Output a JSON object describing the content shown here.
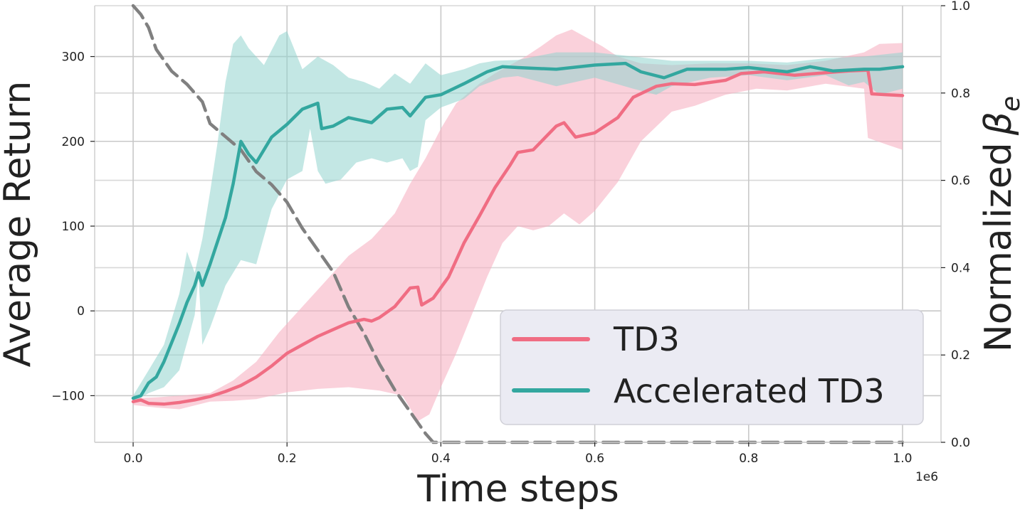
{
  "colors": {
    "td3": "#f06d83",
    "td3_band": "#f7b3c3",
    "acc": "#33a79f",
    "acc_band": "#91d3ce",
    "beta": "#808080",
    "grid": "#c8c8c8",
    "legend_bg": "#ebebf3"
  },
  "chart_data": {
    "type": "line",
    "xlabel": "Time steps",
    "ylabel": "Average Return",
    "y2label": "Normalized",
    "y2label_symbol": "β",
    "y2label_sub": "e",
    "x_offset_label": "1e6",
    "xlim": [
      -0.05,
      1.05
    ],
    "ylim": [
      -155,
      360
    ],
    "y2lim": [
      0,
      1
    ],
    "grid": true,
    "legend_position": "lower-right",
    "x_ticks": [
      0.0,
      0.2,
      0.4,
      0.6,
      0.8,
      1.0
    ],
    "x_tick_labels": [
      "0.0",
      "0.2",
      "0.4",
      "0.6",
      "0.8",
      "1.0"
    ],
    "y_ticks": [
      -100,
      0,
      100,
      200,
      300
    ],
    "y_tick_labels": [
      "−100",
      "0",
      "100",
      "200",
      "300"
    ],
    "y2_ticks": [
      0,
      0.2,
      0.4,
      0.6,
      0.8,
      1.0
    ],
    "y2_tick_labels": [
      "0.0",
      "0.2",
      "0.4",
      "0.6",
      "0.8",
      "1.0"
    ],
    "series": [
      {
        "name": "TD3",
        "axis": "left",
        "points": [
          [
            0.0,
            -107
          ],
          [
            0.01,
            -105
          ],
          [
            0.02,
            -109
          ],
          [
            0.04,
            -110
          ],
          [
            0.06,
            -108
          ],
          [
            0.08,
            -105
          ],
          [
            0.1,
            -101
          ],
          [
            0.12,
            -95
          ],
          [
            0.14,
            -88
          ],
          [
            0.16,
            -78
          ],
          [
            0.18,
            -65
          ],
          [
            0.2,
            -50
          ],
          [
            0.22,
            -40
          ],
          [
            0.24,
            -30
          ],
          [
            0.26,
            -22
          ],
          [
            0.28,
            -14
          ],
          [
            0.3,
            -10
          ],
          [
            0.31,
            -12
          ],
          [
            0.32,
            -8
          ],
          [
            0.34,
            5
          ],
          [
            0.36,
            27
          ],
          [
            0.37,
            28
          ],
          [
            0.375,
            7
          ],
          [
            0.39,
            15
          ],
          [
            0.41,
            40
          ],
          [
            0.43,
            80
          ],
          [
            0.45,
            112
          ],
          [
            0.47,
            145
          ],
          [
            0.49,
            172
          ],
          [
            0.5,
            187
          ],
          [
            0.52,
            190
          ],
          [
            0.55,
            218
          ],
          [
            0.56,
            222
          ],
          [
            0.575,
            205
          ],
          [
            0.6,
            210
          ],
          [
            0.63,
            228
          ],
          [
            0.65,
            252
          ],
          [
            0.68,
            265
          ],
          [
            0.7,
            268
          ],
          [
            0.73,
            267
          ],
          [
            0.77,
            272
          ],
          [
            0.79,
            280
          ],
          [
            0.82,
            282
          ],
          [
            0.86,
            278
          ],
          [
            0.9,
            281
          ],
          [
            0.93,
            283
          ],
          [
            0.955,
            284
          ],
          [
            0.96,
            256
          ],
          [
            0.98,
            255
          ],
          [
            1.0,
            254
          ]
        ],
        "band_upper": [
          [
            0.0,
            -103
          ],
          [
            0.03,
            -102
          ],
          [
            0.06,
            -100
          ],
          [
            0.1,
            -97
          ],
          [
            0.13,
            -82
          ],
          [
            0.16,
            -60
          ],
          [
            0.19,
            -25
          ],
          [
            0.22,
            5
          ],
          [
            0.25,
            35
          ],
          [
            0.28,
            65
          ],
          [
            0.31,
            85
          ],
          [
            0.34,
            115
          ],
          [
            0.36,
            150
          ],
          [
            0.38,
            180
          ],
          [
            0.4,
            215
          ],
          [
            0.42,
            245
          ],
          [
            0.45,
            268
          ],
          [
            0.47,
            280
          ],
          [
            0.49,
            290
          ],
          [
            0.51,
            300
          ],
          [
            0.53,
            312
          ],
          [
            0.55,
            325
          ],
          [
            0.57,
            332
          ],
          [
            0.59,
            322
          ],
          [
            0.61,
            312
          ],
          [
            0.63,
            300
          ],
          [
            0.66,
            292
          ],
          [
            0.7,
            290
          ],
          [
            0.75,
            292
          ],
          [
            0.8,
            292
          ],
          [
            0.85,
            290
          ],
          [
            0.9,
            295
          ],
          [
            0.95,
            305
          ],
          [
            0.97,
            315
          ],
          [
            1.0,
            316
          ]
        ],
        "band_lower": [
          [
            0.0,
            -111
          ],
          [
            0.03,
            -114
          ],
          [
            0.06,
            -116
          ],
          [
            0.1,
            -107
          ],
          [
            0.13,
            -106
          ],
          [
            0.16,
            -104
          ],
          [
            0.2,
            -96
          ],
          [
            0.24,
            -92
          ],
          [
            0.28,
            -90
          ],
          [
            0.32,
            -94
          ],
          [
            0.35,
            -100
          ],
          [
            0.37,
            -130
          ],
          [
            0.385,
            -122
          ],
          [
            0.4,
            -90
          ],
          [
            0.42,
            -50
          ],
          [
            0.44,
            -5
          ],
          [
            0.46,
            40
          ],
          [
            0.48,
            80
          ],
          [
            0.5,
            100
          ],
          [
            0.52,
            95
          ],
          [
            0.54,
            100
          ],
          [
            0.56,
            115
          ],
          [
            0.58,
            102
          ],
          [
            0.6,
            118
          ],
          [
            0.63,
            152
          ],
          [
            0.66,
            200
          ],
          [
            0.7,
            235
          ],
          [
            0.73,
            242
          ],
          [
            0.77,
            255
          ],
          [
            0.81,
            262
          ],
          [
            0.85,
            260
          ],
          [
            0.9,
            268
          ],
          [
            0.95,
            262
          ],
          [
            0.955,
            204
          ],
          [
            0.98,
            196
          ],
          [
            1.0,
            190
          ]
        ]
      },
      {
        "name": "Accelerated TD3",
        "axis": "left",
        "points": [
          [
            0.0,
            -103
          ],
          [
            0.01,
            -100
          ],
          [
            0.02,
            -85
          ],
          [
            0.03,
            -78
          ],
          [
            0.04,
            -60
          ],
          [
            0.06,
            -15
          ],
          [
            0.07,
            10
          ],
          [
            0.08,
            30
          ],
          [
            0.085,
            45
          ],
          [
            0.09,
            30
          ],
          [
            0.1,
            55
          ],
          [
            0.12,
            110
          ],
          [
            0.13,
            150
          ],
          [
            0.14,
            200
          ],
          [
            0.15,
            185
          ],
          [
            0.16,
            175
          ],
          [
            0.18,
            205
          ],
          [
            0.2,
            220
          ],
          [
            0.22,
            238
          ],
          [
            0.24,
            245
          ],
          [
            0.245,
            215
          ],
          [
            0.26,
            218
          ],
          [
            0.28,
            228
          ],
          [
            0.31,
            222
          ],
          [
            0.33,
            238
          ],
          [
            0.35,
            240
          ],
          [
            0.36,
            230
          ],
          [
            0.38,
            252
          ],
          [
            0.4,
            255
          ],
          [
            0.43,
            268
          ],
          [
            0.46,
            282
          ],
          [
            0.48,
            288
          ],
          [
            0.5,
            287
          ],
          [
            0.55,
            285
          ],
          [
            0.6,
            290
          ],
          [
            0.64,
            292
          ],
          [
            0.66,
            282
          ],
          [
            0.69,
            275
          ],
          [
            0.72,
            285
          ],
          [
            0.77,
            285
          ],
          [
            0.8,
            287
          ],
          [
            0.85,
            282
          ],
          [
            0.88,
            288
          ],
          [
            0.91,
            283
          ],
          [
            0.95,
            285
          ],
          [
            0.97,
            285
          ],
          [
            1.0,
            288
          ]
        ],
        "band_upper": [
          [
            0.0,
            -100
          ],
          [
            0.02,
            -70
          ],
          [
            0.04,
            -40
          ],
          [
            0.06,
            20
          ],
          [
            0.07,
            70
          ],
          [
            0.08,
            45
          ],
          [
            0.09,
            85
          ],
          [
            0.1,
            140
          ],
          [
            0.11,
            200
          ],
          [
            0.12,
            270
          ],
          [
            0.13,
            315
          ],
          [
            0.14,
            325
          ],
          [
            0.15,
            310
          ],
          [
            0.17,
            290
          ],
          [
            0.19,
            325
          ],
          [
            0.2,
            330
          ],
          [
            0.22,
            285
          ],
          [
            0.24,
            300
          ],
          [
            0.26,
            290
          ],
          [
            0.28,
            275
          ],
          [
            0.3,
            270
          ],
          [
            0.32,
            262
          ],
          [
            0.34,
            280
          ],
          [
            0.36,
            268
          ],
          [
            0.38,
            292
          ],
          [
            0.4,
            278
          ],
          [
            0.43,
            285
          ],
          [
            0.45,
            292
          ],
          [
            0.47,
            295
          ],
          [
            0.5,
            296
          ],
          [
            0.55,
            305
          ],
          [
            0.6,
            305
          ],
          [
            0.65,
            300
          ],
          [
            0.7,
            295
          ],
          [
            0.75,
            295
          ],
          [
            0.8,
            295
          ],
          [
            0.85,
            293
          ],
          [
            0.9,
            298
          ],
          [
            0.95,
            300
          ],
          [
            1.0,
            305
          ]
        ],
        "band_lower": [
          [
            0.0,
            -108
          ],
          [
            0.02,
            -97
          ],
          [
            0.04,
            -90
          ],
          [
            0.06,
            -70
          ],
          [
            0.08,
            -5
          ],
          [
            0.085,
            40
          ],
          [
            0.09,
            -40
          ],
          [
            0.1,
            -20
          ],
          [
            0.12,
            30
          ],
          [
            0.14,
            60
          ],
          [
            0.16,
            55
          ],
          [
            0.18,
            120
          ],
          [
            0.2,
            155
          ],
          [
            0.22,
            165
          ],
          [
            0.23,
            215
          ],
          [
            0.24,
            165
          ],
          [
            0.25,
            150
          ],
          [
            0.27,
            155
          ],
          [
            0.29,
            175
          ],
          [
            0.31,
            180
          ],
          [
            0.33,
            175
          ],
          [
            0.35,
            180
          ],
          [
            0.36,
            165
          ],
          [
            0.37,
            170
          ],
          [
            0.38,
            225
          ],
          [
            0.4,
            240
          ],
          [
            0.43,
            250
          ],
          [
            0.45,
            265
          ],
          [
            0.48,
            275
          ],
          [
            0.5,
            277
          ],
          [
            0.55,
            265
          ],
          [
            0.6,
            275
          ],
          [
            0.65,
            262
          ],
          [
            0.68,
            255
          ],
          [
            0.7,
            265
          ],
          [
            0.75,
            275
          ],
          [
            0.8,
            278
          ],
          [
            0.85,
            272
          ],
          [
            0.9,
            278
          ],
          [
            0.93,
            266
          ],
          [
            0.95,
            270
          ],
          [
            0.97,
            255
          ],
          [
            1.0,
            262
          ]
        ]
      },
      {
        "name": "β_e",
        "axis": "right",
        "style": "dashed",
        "points": [
          [
            0.0,
            1.0
          ],
          [
            0.01,
            0.98
          ],
          [
            0.02,
            0.95
          ],
          [
            0.03,
            0.9
          ],
          [
            0.05,
            0.85
          ],
          [
            0.07,
            0.82
          ],
          [
            0.09,
            0.78
          ],
          [
            0.1,
            0.73
          ],
          [
            0.12,
            0.7
          ],
          [
            0.14,
            0.67
          ],
          [
            0.16,
            0.62
          ],
          [
            0.18,
            0.59
          ],
          [
            0.2,
            0.55
          ],
          [
            0.22,
            0.49
          ],
          [
            0.24,
            0.44
          ],
          [
            0.26,
            0.39
          ],
          [
            0.28,
            0.31
          ],
          [
            0.3,
            0.25
          ],
          [
            0.32,
            0.18
          ],
          [
            0.34,
            0.12
          ],
          [
            0.36,
            0.07
          ],
          [
            0.38,
            0.02
          ],
          [
            0.39,
            0.0
          ],
          [
            1.0,
            0.0
          ]
        ]
      }
    ]
  }
}
